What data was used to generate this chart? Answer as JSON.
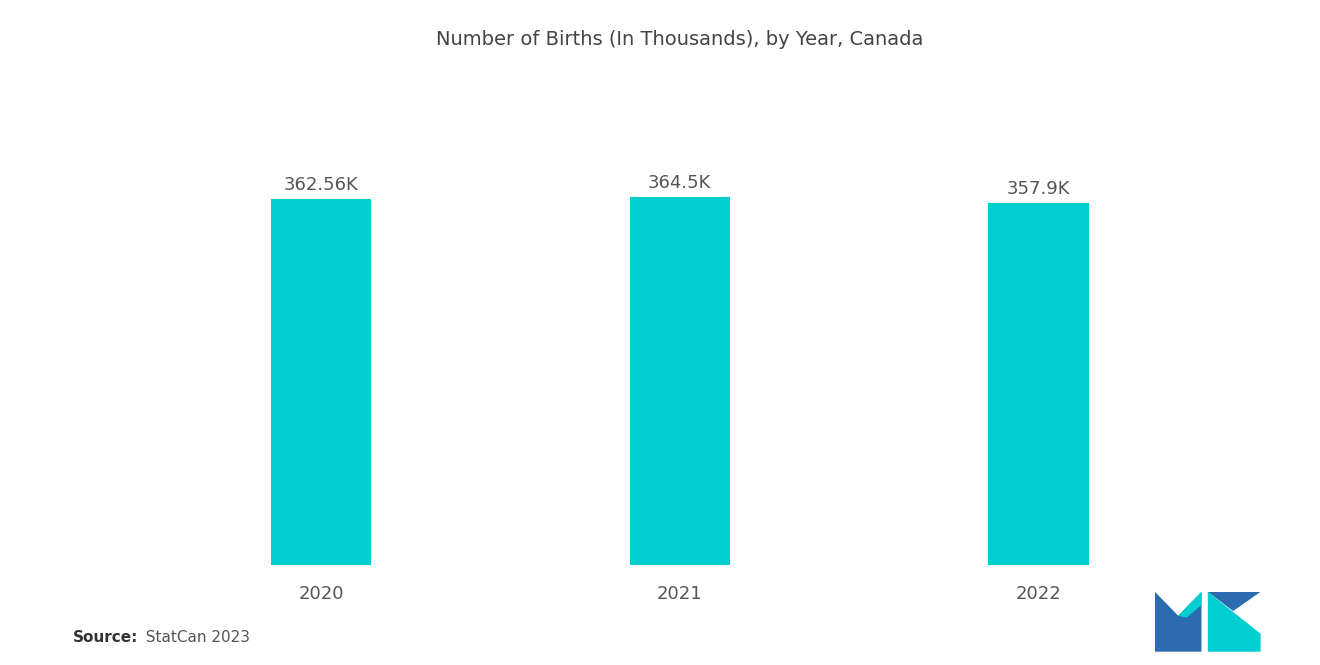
{
  "title": "Number of Births (In Thousands), by Year, Canada",
  "categories": [
    "2020",
    "2021",
    "2022"
  ],
  "values": [
    362.56,
    364.5,
    357.9
  ],
  "labels": [
    "362.56K",
    "364.5K",
    "357.9K"
  ],
  "bar_color": "#00CED1",
  "background_color": "#ffffff",
  "title_fontsize": 14,
  "label_fontsize": 13,
  "tick_fontsize": 13,
  "source_bold": "Source:",
  "source_normal": "  StatCan 2023",
  "ylim": [
    0,
    480
  ],
  "bar_width": 0.28,
  "logo_blue": "#2B6CB0",
  "logo_teal": "#00CED1"
}
